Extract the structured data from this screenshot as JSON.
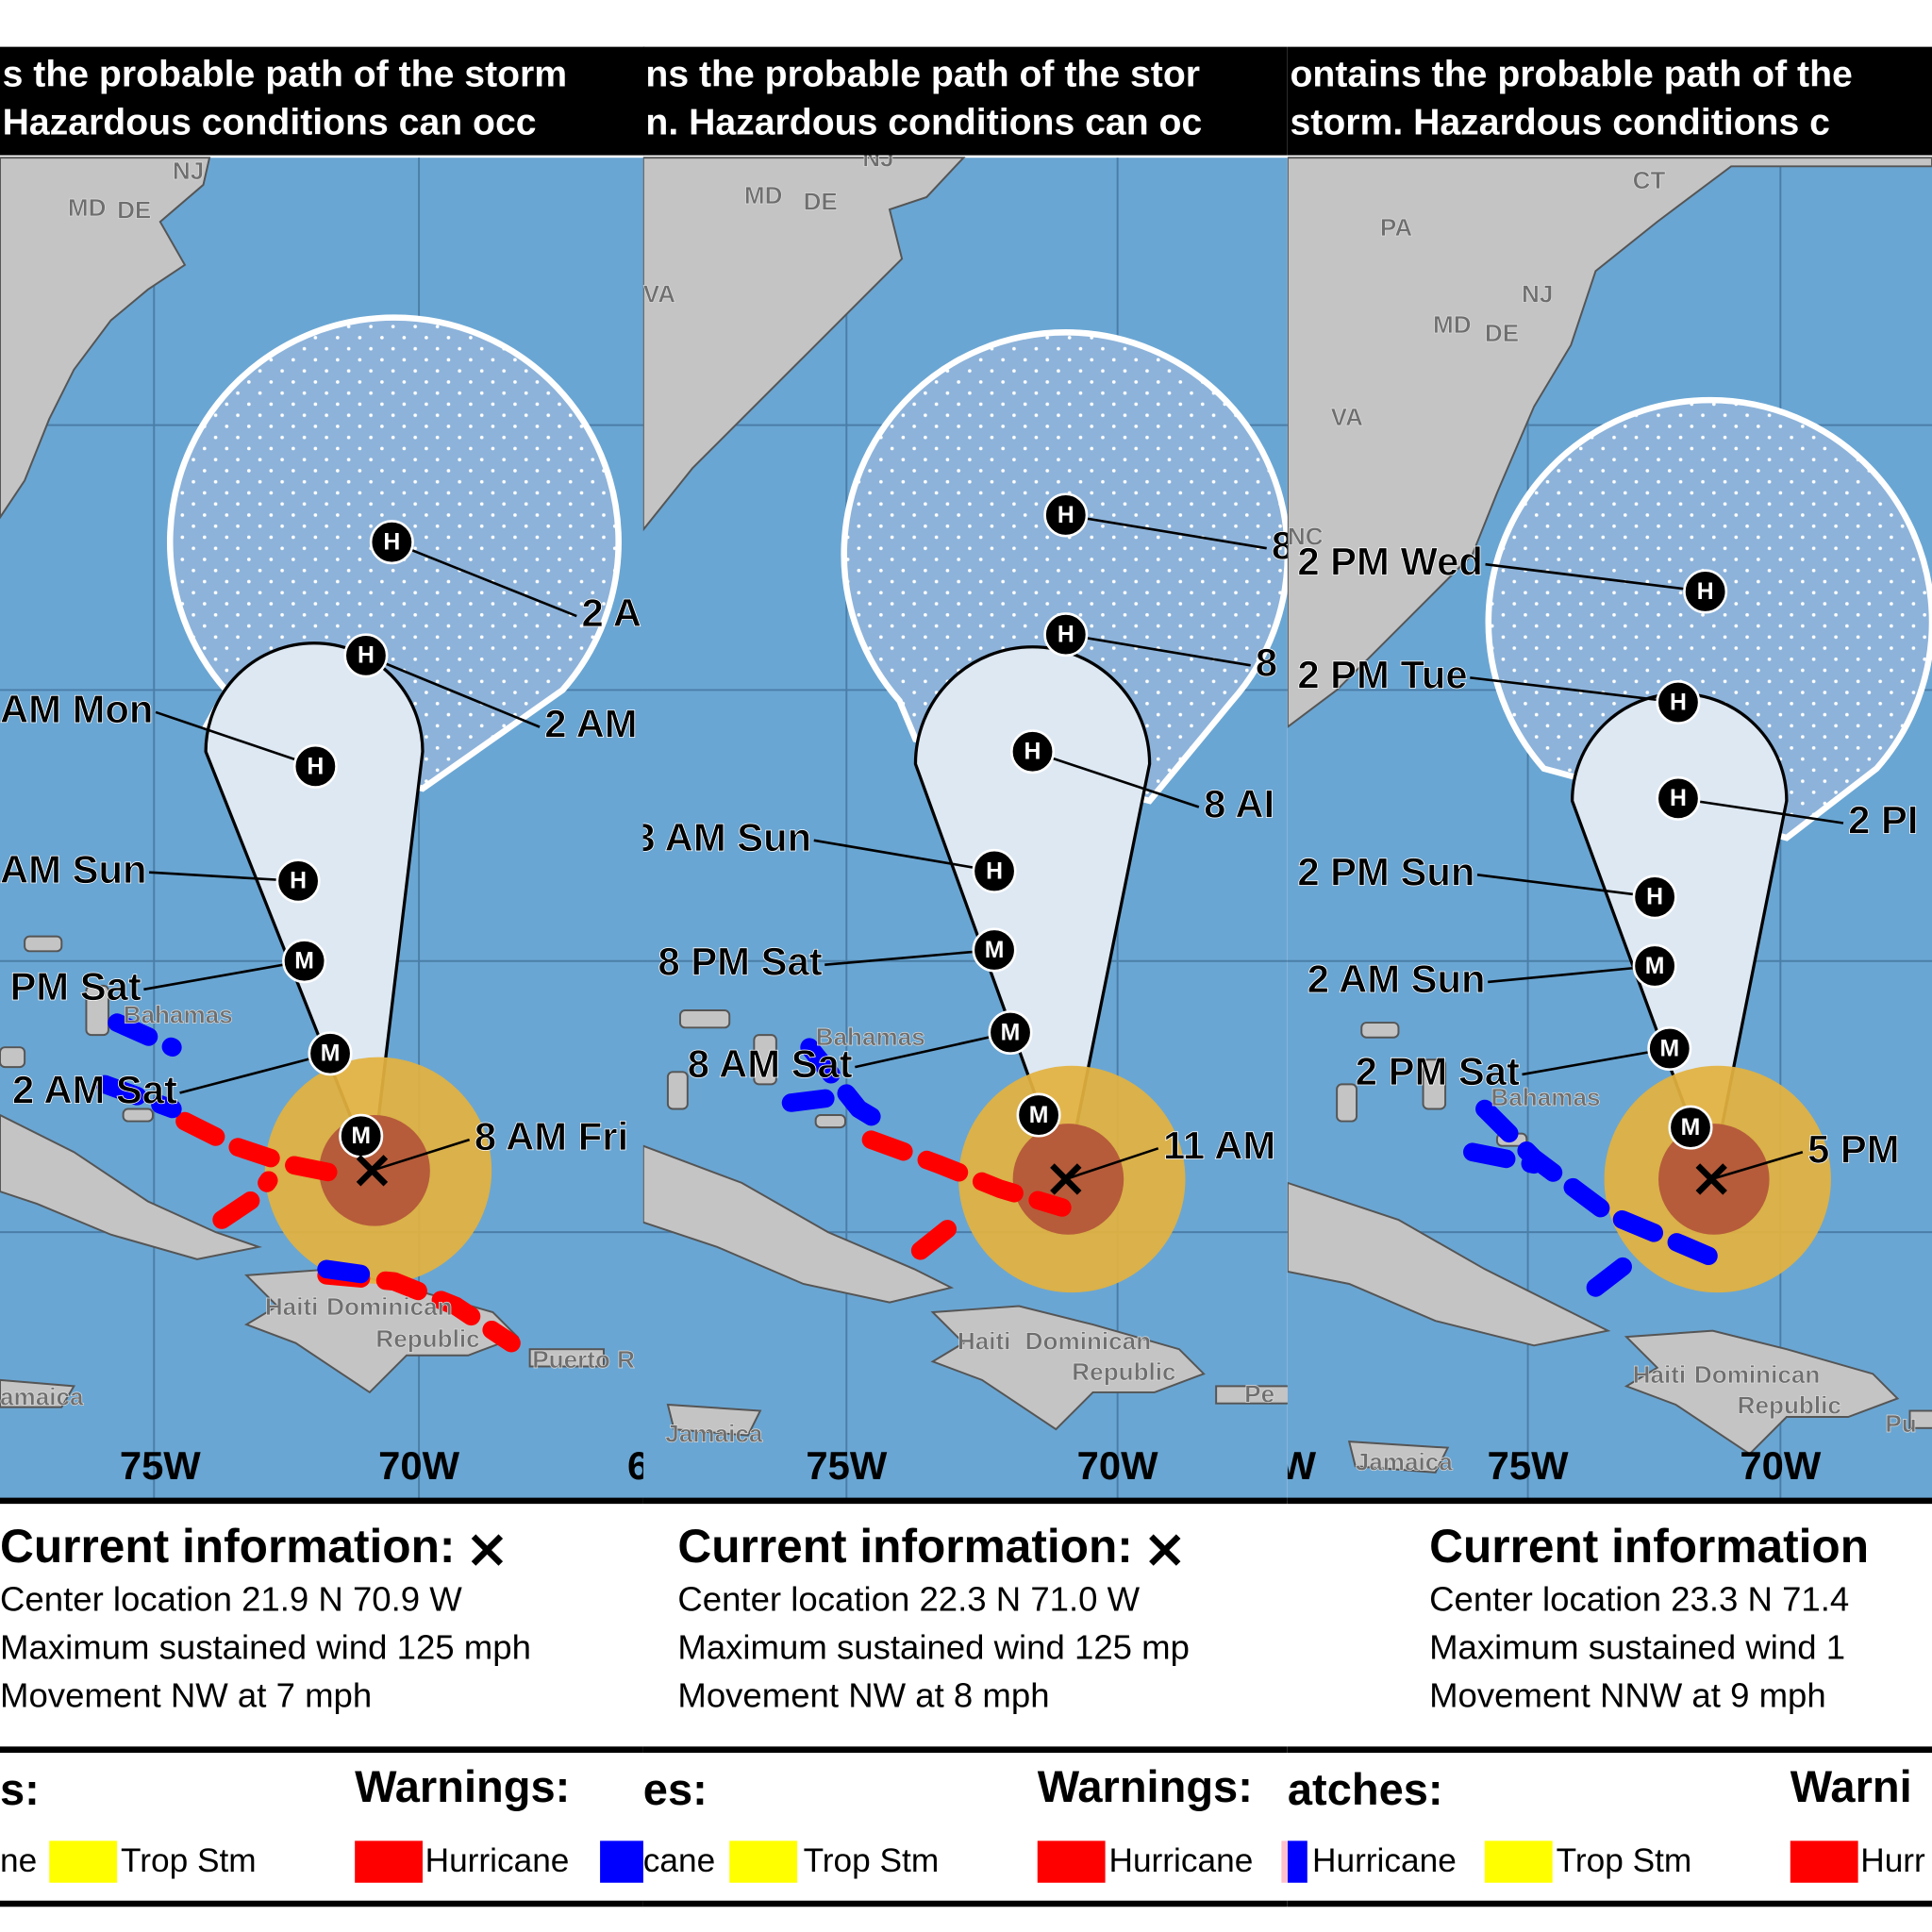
{
  "panels": [
    {
      "header": [
        "s the probable path of the storm",
        " Hazardous conditions can occ"
      ],
      "markers": [
        "H",
        "H",
        "H",
        "H",
        "M",
        "M",
        "M"
      ],
      "forecast_labels": [
        "2 A",
        "2 AM",
        "AM Mon",
        "AM Sun",
        "PM Sat",
        "2 AM Sat",
        "8 AM Fri"
      ],
      "place_labels": [
        "NJ",
        "MD",
        "DE",
        "Bahamas",
        "Haiti",
        "Dominican",
        "Republic",
        "Puerto R",
        "amaica"
      ],
      "axis_labels": [
        "75W",
        "70W",
        "6"
      ],
      "info": {
        "title": "Current information:",
        "lines": [
          "Center location 21.9 N 70.9 W",
          "Maximum sustained wind 125 mph",
          "Movement NW at 7 mph"
        ]
      },
      "watches_title": "s:",
      "warnings_title": "Warnings:",
      "legend": [
        "ne",
        "Trop Stm",
        "Hurricane"
      ]
    },
    {
      "header": [
        "ns the probable path of the stor",
        "n. Hazardous conditions can oc"
      ],
      "markers": [
        "H",
        "H",
        "H",
        "H",
        "M",
        "M",
        "M"
      ],
      "forecast_labels": [
        "8",
        "8",
        "8 AI",
        "3 AM Sun",
        "8 PM Sat",
        "8 AM Sat",
        "11 AM"
      ],
      "place_labels": [
        "VA",
        "MD",
        "DE",
        "NJ",
        "Bahamas",
        "Haiti",
        "Dominican",
        "Republic",
        "Jamaica",
        "Pe"
      ],
      "axis_labels": [
        "75W",
        "70W"
      ],
      "info": {
        "title": "Current information:",
        "lines": [
          "Center location 22.3 N 71.0 W",
          "Maximum sustained wind 125 mp",
          "Movement NW at 8 mph"
        ]
      },
      "watches_title": "es:",
      "warnings_title": "Warnings:",
      "legend": [
        "cane",
        "Trop Stm",
        "Hurricane"
      ]
    },
    {
      "header": [
        "ontains the probable path of the",
        "storm. Hazardous conditions c"
      ],
      "markers": [
        "H",
        "H",
        "H",
        "H",
        "M",
        "M",
        "M"
      ],
      "forecast_labels": [
        "2 PM Wed",
        "2 PM Tue",
        "2 PI",
        "2 PM Sun",
        "2 AM Sun",
        "2 PM Sat",
        "5 PM"
      ],
      "place_labels": [
        "CT",
        "PA",
        "NJ",
        "MD",
        "DE",
        "VA",
        "NC",
        "Bahamas",
        "Haiti",
        "Dominican",
        "Republic",
        "Jamaica",
        "Pu"
      ],
      "axis_labels": [
        "W",
        "75W",
        "70W"
      ],
      "info": {
        "title": "Current information",
        "lines": [
          "Center location 23.3 N 71.4",
          "Maximum sustained wind 1",
          "Movement NNW at 9 mph"
        ]
      },
      "watches_title": "atches:",
      "warnings_title": "Warni",
      "legend": [
        "Hurricane",
        "Trop Stm",
        "Hurr"
      ]
    }
  ]
}
